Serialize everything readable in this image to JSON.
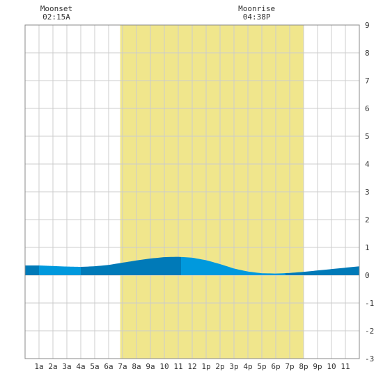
{
  "chart_data": {
    "type": "area",
    "x_tick_labels": [
      "1a",
      "2a",
      "3a",
      "4a",
      "5a",
      "6a",
      "7a",
      "8a",
      "9a",
      "10",
      "11",
      "12",
      "1p",
      "2p",
      "3p",
      "4p",
      "5p",
      "6p",
      "7p",
      "8p",
      "9p",
      "10",
      "11"
    ],
    "y_tick_labels": [
      "9",
      "8",
      "7",
      "6",
      "5",
      "4",
      "3",
      "2",
      "1",
      "0",
      "-1",
      "-2",
      "-3"
    ],
    "xlim": [
      0,
      24
    ],
    "ylim": [
      -3,
      9
    ],
    "grid": true,
    "daylight": {
      "start": 6.83,
      "end": 20.0,
      "color": "#f0e68c"
    },
    "events": [
      {
        "label": "Moonset",
        "time": "02:15A",
        "x": 2.25
      },
      {
        "label": "Moonrise",
        "time": "04:38P",
        "x": 16.63
      }
    ],
    "tide_series": {
      "x": [
        0,
        1,
        2,
        3,
        4,
        5,
        6,
        7,
        8,
        9,
        10,
        11,
        12,
        13,
        14,
        15,
        16,
        17,
        18,
        19,
        20,
        21,
        22,
        23,
        24
      ],
      "y": [
        0.35,
        0.35,
        0.33,
        0.31,
        0.3,
        0.32,
        0.37,
        0.45,
        0.53,
        0.6,
        0.65,
        0.66,
        0.63,
        0.54,
        0.4,
        0.24,
        0.13,
        0.07,
        0.06,
        0.08,
        0.12,
        0.17,
        0.22,
        0.27,
        0.32
      ]
    },
    "colors": {
      "tide_light": "#0099dd",
      "tide_dark": "#007ab8",
      "grid": "#cccccc",
      "border": "#888888"
    }
  }
}
